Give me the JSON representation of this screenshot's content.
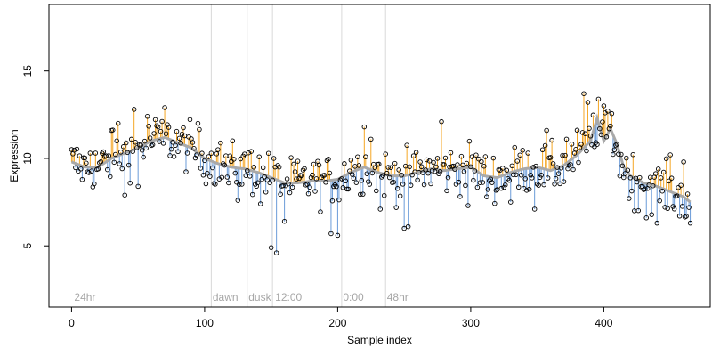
{
  "chart_data": {
    "type": "scatter",
    "title": "",
    "xlabel": "Sample index",
    "ylabel": "Expression",
    "xlim": [
      -17,
      480
    ],
    "ylim": [
      1.5,
      18.8
    ],
    "x_ticks": [
      0,
      100,
      200,
      300,
      400
    ],
    "y_ticks": [
      5,
      10,
      15
    ],
    "grid": false,
    "legend": "none",
    "colors": {
      "above_fit": "#f5a623",
      "below_fit": "#6a9bd8",
      "fit_line": "#a9a9a9",
      "point_edge": "#000000",
      "separator": "#d9d9d9",
      "annotation": "#a6a6a6"
    },
    "annotations": [
      {
        "text": "24hr",
        "x": 2
      },
      {
        "text": "dawn",
        "x": 106
      },
      {
        "text": "dusk",
        "x": 133
      },
      {
        "text": "12:00",
        "x": 153
      },
      {
        "text": "0:00",
        "x": 204
      },
      {
        "text": "48hr",
        "x": 237
      }
    ],
    "separators": [
      105,
      132,
      151,
      203,
      236
    ],
    "fit_knots": [
      [
        0,
        9.8
      ],
      [
        10,
        9.5
      ],
      [
        20,
        9.5
      ],
      [
        30,
        10.0
      ],
      [
        40,
        10.3
      ],
      [
        50,
        10.6
      ],
      [
        60,
        11.0
      ],
      [
        70,
        11.2
      ],
      [
        80,
        10.9
      ],
      [
        90,
        10.6
      ],
      [
        100,
        10.0
      ],
      [
        110,
        9.7
      ],
      [
        120,
        9.5
      ],
      [
        130,
        9.4
      ],
      [
        140,
        9.2
      ],
      [
        150,
        8.9
      ],
      [
        160,
        8.6
      ],
      [
        170,
        8.6
      ],
      [
        180,
        8.7
      ],
      [
        190,
        8.7
      ],
      [
        200,
        8.8
      ],
      [
        210,
        9.2
      ],
      [
        220,
        9.5
      ],
      [
        230,
        9.2
      ],
      [
        240,
        9.0
      ],
      [
        250,
        9.0
      ],
      [
        260,
        9.2
      ],
      [
        270,
        9.4
      ],
      [
        280,
        9.3
      ],
      [
        290,
        9.4
      ],
      [
        300,
        9.5
      ],
      [
        310,
        9.0
      ],
      [
        320,
        8.9
      ],
      [
        330,
        9.2
      ],
      [
        340,
        9.4
      ],
      [
        350,
        9.5
      ],
      [
        360,
        9.3
      ],
      [
        370,
        9.6
      ],
      [
        380,
        10.2
      ],
      [
        390,
        11.0
      ],
      [
        395,
        12.3
      ],
      [
        400,
        11.0
      ],
      [
        405,
        11.7
      ],
      [
        410,
        10.8
      ],
      [
        415,
        9.5
      ],
      [
        420,
        9.0
      ],
      [
        430,
        8.6
      ],
      [
        440,
        8.4
      ],
      [
        450,
        8.1
      ],
      [
        460,
        7.8
      ],
      [
        465,
        7.5
      ]
    ],
    "n_points": 466,
    "residual_scale": 1.0,
    "featured_points": [
      [
        14,
        10.3
      ],
      [
        30,
        11.6
      ],
      [
        35,
        12.0
      ],
      [
        40,
        7.9
      ],
      [
        47,
        12.8
      ],
      [
        50,
        8.4
      ],
      [
        57,
        12.4
      ],
      [
        65,
        11.8
      ],
      [
        70,
        12.9
      ],
      [
        95,
        12.0
      ],
      [
        110,
        10.5
      ],
      [
        118,
        8.6
      ],
      [
        125,
        7.6
      ],
      [
        135,
        10.4
      ],
      [
        142,
        7.4
      ],
      [
        150,
        4.9
      ],
      [
        152,
        10.0
      ],
      [
        154,
        4.6
      ],
      [
        160,
        6.4
      ],
      [
        180,
        8.9
      ],
      [
        195,
        5.7
      ],
      [
        200,
        5.6
      ],
      [
        210,
        9.9
      ],
      [
        220,
        11.8
      ],
      [
        225,
        11.1
      ],
      [
        232,
        7.1
      ],
      [
        250,
        6.0
      ],
      [
        253,
        6.1
      ],
      [
        278,
        12.1
      ],
      [
        298,
        7.3
      ],
      [
        312,
        7.8
      ],
      [
        330,
        7.5
      ],
      [
        348,
        7.1
      ],
      [
        357,
        11.6
      ],
      [
        372,
        11.1
      ],
      [
        385,
        13.7
      ],
      [
        388,
        13.2
      ],
      [
        395,
        10.8
      ],
      [
        400,
        13.0
      ],
      [
        403,
        12.7
      ],
      [
        412,
        9.0
      ],
      [
        423,
        7.0
      ],
      [
        432,
        6.6
      ],
      [
        440,
        6.3
      ],
      [
        450,
        10.2
      ],
      [
        457,
        6.7
      ],
      [
        460,
        9.8
      ],
      [
        465,
        6.3
      ]
    ]
  }
}
